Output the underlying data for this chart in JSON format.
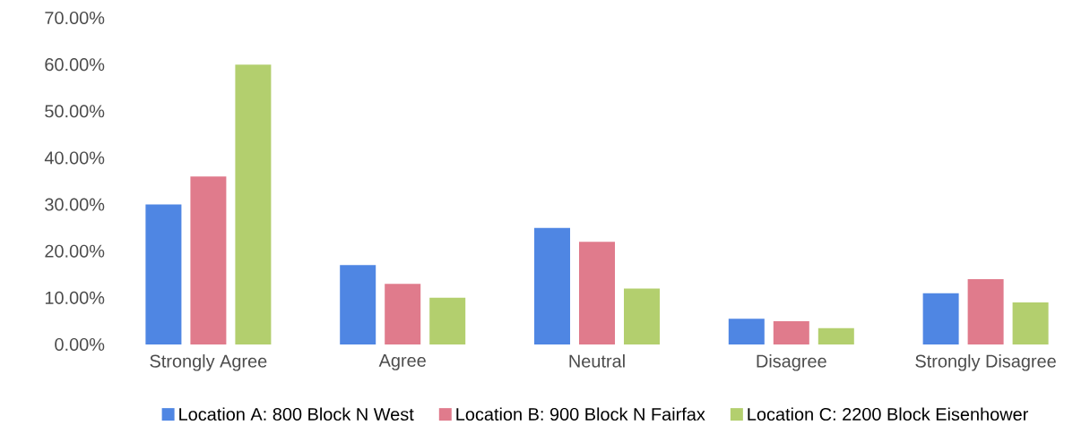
{
  "chart_data": {
    "type": "bar",
    "categories": [
      "Strongly Agree",
      "Agree",
      "Neutral",
      "Disagree",
      "Strongly Disagree"
    ],
    "series": [
      {
        "name": "Location A: 800 Block N West",
        "color": "#4f86e3",
        "values": [
          30,
          17,
          25,
          5.5,
          11
        ]
      },
      {
        "name": "Location B: 900 Block N Fairfax",
        "color": "#e07b8c",
        "values": [
          36,
          13,
          22,
          5,
          14
        ]
      },
      {
        "name": "Location C: 2200 Block Eisenhower",
        "color": "#b3cf6e",
        "values": [
          60,
          10,
          12,
          3.5,
          9
        ]
      }
    ],
    "ylim": [
      0,
      70
    ],
    "yticks": [
      {
        "value": 0,
        "label": "0.00%"
      },
      {
        "value": 10,
        "label": "10.00%"
      },
      {
        "value": 20,
        "label": "20.00%"
      },
      {
        "value": 30,
        "label": "30.00%"
      },
      {
        "value": 40,
        "label": "40.00%"
      },
      {
        "value": 50,
        "label": "50.00%"
      },
      {
        "value": 60,
        "label": "60.00%"
      },
      {
        "value": 70,
        "label": "70.00%"
      }
    ],
    "legend": "bottom",
    "grid": false
  }
}
